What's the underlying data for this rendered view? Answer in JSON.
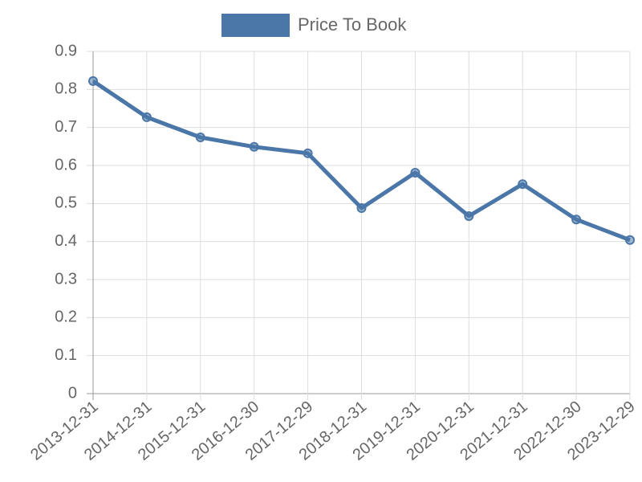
{
  "chart_data": {
    "type": "line",
    "categories": [
      "2013-12-31",
      "2014-12-31",
      "2015-12-31",
      "2016-12-30",
      "2017-12-29",
      "2018-12-31",
      "2019-12-31",
      "2020-12-31",
      "2021-12-31",
      "2022-12-30",
      "2023-12-29"
    ],
    "series": [
      {
        "name": "Price To Book",
        "color": "#4a76a8",
        "values": [
          0.822,
          0.727,
          0.674,
          0.649,
          0.632,
          0.488,
          0.581,
          0.467,
          0.551,
          0.458,
          0.404
        ]
      }
    ],
    "ylim": [
      0,
      0.9
    ],
    "yticks": [
      0,
      0.1,
      0.2,
      0.3,
      0.4,
      0.5,
      0.6,
      0.7,
      0.8,
      0.9
    ],
    "grid": true,
    "legend": "top"
  }
}
